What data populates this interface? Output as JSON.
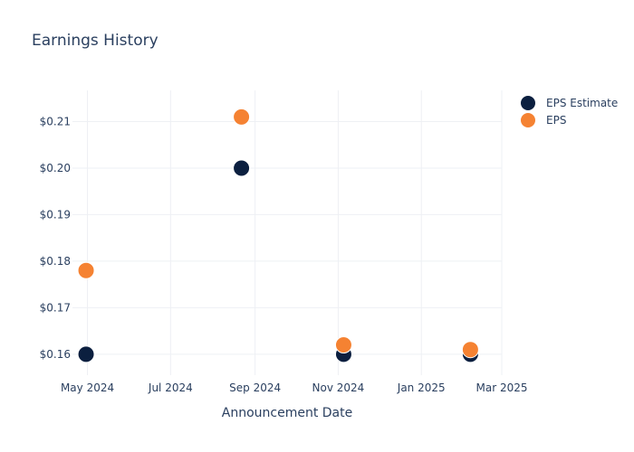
{
  "chart_data": {
    "type": "scatter",
    "title": "Earnings History",
    "xlabel": "Announcement Date",
    "ylabel": "",
    "x_ticks": [
      "May 2024",
      "Jul 2024",
      "Sep 2024",
      "Nov 2024",
      "Jan 2025",
      "Mar 2025"
    ],
    "x_tick_dates": [
      "2024-05-01",
      "2024-07-01",
      "2024-09-01",
      "2024-11-01",
      "2025-01-01",
      "2025-03-01"
    ],
    "xlim": [
      "2024-04-20",
      "2025-03-01"
    ],
    "y_ticks": [
      "$0.16",
      "$0.17",
      "$0.18",
      "$0.19",
      "$0.20",
      "$0.21"
    ],
    "y_tick_values": [
      0.16,
      0.17,
      0.18,
      0.19,
      0.2,
      0.21
    ],
    "ylim": [
      0.1555,
      0.2167
    ],
    "grid": true,
    "legend_position": "top-right",
    "series": [
      {
        "name": "EPS Estimate",
        "color": "#0b1f3f",
        "points": [
          {
            "x": "2024-04-30",
            "y": 0.16
          },
          {
            "x": "2024-08-22",
            "y": 0.2
          },
          {
            "x": "2024-11-05",
            "y": 0.16
          },
          {
            "x": "2025-02-06",
            "y": 0.16
          }
        ]
      },
      {
        "name": "EPS",
        "color": "#f58232",
        "points": [
          {
            "x": "2024-04-30",
            "y": 0.178
          },
          {
            "x": "2024-08-22",
            "y": 0.211
          },
          {
            "x": "2024-11-05",
            "y": 0.162
          },
          {
            "x": "2025-02-06",
            "y": 0.161
          }
        ]
      }
    ]
  }
}
